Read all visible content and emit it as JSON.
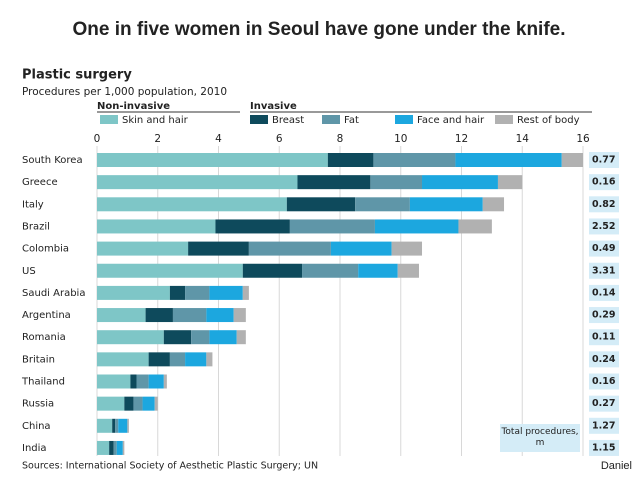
{
  "header": {
    "title": "One in five women in Seoul have gone under the knife."
  },
  "credit": "Daniel",
  "chart_data": {
    "type": "stacked_barh",
    "title": "Plastic surgery",
    "subtitle": "Procedures per 1,000 population, 2010",
    "legend_groups": [
      "Non-invasive",
      "Invasive"
    ],
    "categories": [
      "South Korea",
      "Greece",
      "Italy",
      "Brazil",
      "Colombia",
      "US",
      "Saudi Arabia",
      "Argentina",
      "Romania",
      "Britain",
      "Thailand",
      "Russia",
      "China",
      "India"
    ],
    "series": [
      {
        "name": "Skin and hair",
        "color": "#7ec6c7",
        "values": [
          7.6,
          6.6,
          6.25,
          3.9,
          3.0,
          4.8,
          2.4,
          1.6,
          2.2,
          1.7,
          1.1,
          0.9,
          0.5,
          0.4
        ]
      },
      {
        "name": "Breast",
        "color": "#0e4a5c",
        "values": [
          1.5,
          2.4,
          2.25,
          2.45,
          2.0,
          1.95,
          0.5,
          0.9,
          0.9,
          0.7,
          0.2,
          0.3,
          0.1,
          0.15
        ]
      },
      {
        "name": "Fat",
        "color": "#5f96a8",
        "values": [
          2.7,
          1.7,
          1.8,
          2.8,
          2.7,
          1.85,
          0.8,
          1.1,
          0.6,
          0.5,
          0.4,
          0.3,
          0.1,
          0.1
        ]
      },
      {
        "name": "Face and hair",
        "color": "#1ca7df",
        "values": [
          3.5,
          2.5,
          2.4,
          2.75,
          2.0,
          1.3,
          1.1,
          0.9,
          0.9,
          0.7,
          0.5,
          0.4,
          0.3,
          0.2
        ]
      },
      {
        "name": "Rest of body",
        "color": "#b1b1b1",
        "values": [
          0.7,
          0.8,
          0.7,
          1.1,
          1.0,
          0.7,
          0.2,
          0.4,
          0.3,
          0.2,
          0.1,
          0.1,
          0.05,
          0.05
        ]
      }
    ],
    "totals": {
      "label": "Total procedures, m",
      "values": [
        0.77,
        0.16,
        0.82,
        2.52,
        0.49,
        3.31,
        0.14,
        0.29,
        0.11,
        0.24,
        0.16,
        0.27,
        1.27,
        1.15
      ]
    },
    "xlim": [
      0,
      16
    ],
    "xticks": [
      0,
      2,
      4,
      6,
      8,
      10,
      12,
      14,
      16
    ],
    "grid": true,
    "source": "Sources: International Society of Aesthetic Plastic Surgery; UN"
  }
}
